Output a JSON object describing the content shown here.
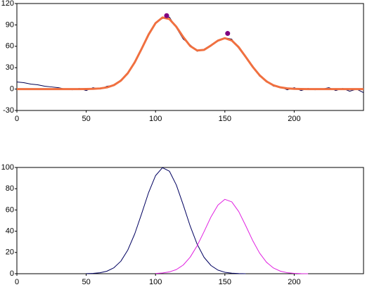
{
  "chart_data": [
    {
      "type": "line",
      "x": [
        0,
        5,
        10,
        15,
        20,
        25,
        30,
        35,
        40,
        45,
        50,
        55,
        60,
        65,
        70,
        75,
        80,
        85,
        90,
        95,
        100,
        105,
        110,
        115,
        120,
        125,
        130,
        135,
        140,
        145,
        150,
        155,
        160,
        165,
        170,
        175,
        180,
        185,
        190,
        195,
        200,
        205,
        210,
        215,
        220,
        225,
        230,
        235,
        240,
        245,
        250
      ],
      "series": [
        {
          "color": "#000050",
          "width": 1,
          "values": [
            10,
            9,
            7,
            6,
            4,
            3,
            2,
            0,
            -1,
            1,
            -2,
            2,
            0,
            4,
            5,
            13,
            21,
            39,
            55,
            78,
            93,
            99,
            101,
            86,
            70,
            62,
            53,
            56,
            62,
            67,
            72,
            70,
            57,
            44,
            33,
            18,
            12,
            4,
            3,
            -1,
            2,
            -2,
            1,
            -1,
            0,
            2,
            -2,
            1,
            -3,
            0,
            -5
          ]
        },
        {
          "color": "#f07040",
          "width": 3,
          "values": [
            0,
            0,
            0,
            0,
            0,
            0,
            0,
            0,
            0,
            0,
            0.1,
            0.3,
            0.9,
            2.4,
            5.6,
            11.8,
            22.3,
            37.5,
            56.6,
            76.5,
            92.5,
            100.4,
            98.2,
            87.4,
            72.9,
            60.4,
            54.1,
            55.0,
            61.2,
            68.0,
            71.4,
            68.1,
            58.7,
            45.3,
            31.4,
            19.5,
            10.8,
            5.4,
            2.4,
            1.0,
            0.3,
            0.1,
            0,
            0,
            0,
            0,
            0,
            0,
            0,
            0,
            0
          ]
        },
        {
          "color": "#800080",
          "style": "marker",
          "x": [
            108,
            152
          ],
          "values": [
            103,
            78
          ]
        }
      ],
      "xlim": [
        0,
        250
      ],
      "xticks": [
        0,
        50,
        100,
        150,
        200
      ],
      "ylim": [
        -30,
        120
      ],
      "yticks": [
        -30,
        0,
        30,
        60,
        90,
        120
      ]
    },
    {
      "type": "line",
      "x": [
        0,
        5,
        10,
        15,
        20,
        25,
        30,
        35,
        40,
        45,
        50,
        55,
        60,
        65,
        70,
        75,
        80,
        85,
        90,
        95,
        100,
        105,
        110,
        115,
        120,
        125,
        130,
        135,
        140,
        145,
        150,
        155,
        160,
        165,
        170,
        175,
        180,
        185,
        190,
        195,
        200,
        205,
        210,
        215,
        220,
        225,
        230,
        235,
        240,
        245,
        250
      ],
      "series": [
        {
          "color": "#000060",
          "width": 1,
          "values": [
            null,
            null,
            null,
            null,
            null,
            null,
            null,
            null,
            null,
            null,
            0.1,
            0.3,
            0.9,
            2.4,
            5.6,
            11.8,
            22.3,
            37.5,
            56.6,
            76.4,
            92.3,
            99.8,
            96.5,
            83.5,
            64.7,
            44.8,
            27.8,
            15.4,
            7.7,
            3.4,
            1.35,
            0.48,
            0.15,
            0.04,
            null,
            null,
            null,
            null,
            null,
            null,
            null,
            null,
            null,
            null,
            null,
            null,
            null,
            null,
            null,
            null,
            null
          ]
        },
        {
          "color": "#e020e0",
          "width": 1,
          "values": [
            null,
            null,
            null,
            null,
            null,
            null,
            null,
            null,
            null,
            null,
            null,
            null,
            null,
            null,
            null,
            null,
            null,
            null,
            null,
            null,
            0.22,
            0.64,
            1.7,
            3.9,
            8.2,
            15.6,
            26.3,
            39.6,
            53.5,
            64.6,
            70,
            67.6,
            58.5,
            45.3,
            31.4,
            19.5,
            10.8,
            5.4,
            2.4,
            0.95,
            0.34,
            0.1,
            0.03,
            null,
            null,
            null,
            null,
            null,
            null,
            null,
            null
          ]
        }
      ],
      "xlim": [
        0,
        250
      ],
      "xticks": [
        0,
        50,
        100,
        150,
        200
      ],
      "ylim": [
        0,
        100
      ],
      "yticks": [
        0,
        20,
        40,
        60,
        80,
        100
      ]
    }
  ]
}
